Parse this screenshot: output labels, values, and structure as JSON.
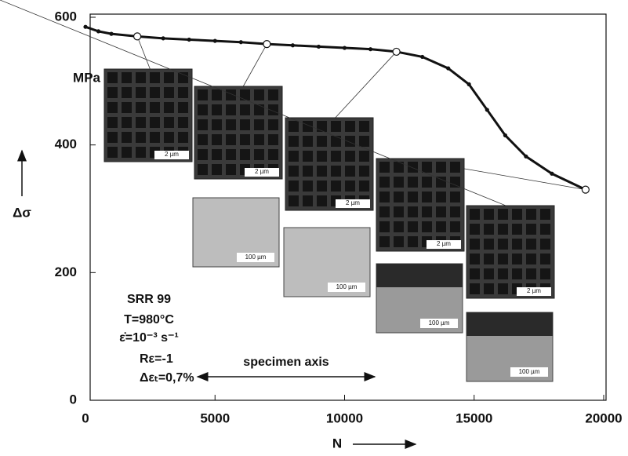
{
  "chart_data": {
    "type": "line",
    "x": [
      0,
      500,
      1000,
      2000,
      3000,
      4000,
      5000,
      6000,
      7000,
      8000,
      9000,
      10000,
      11000,
      12000,
      13000,
      14000,
      14800,
      15500,
      16200,
      17000,
      18000,
      19300
    ],
    "values": [
      585,
      578,
      574,
      570,
      567,
      565,
      563,
      561,
      558,
      556,
      554,
      552,
      550,
      546,
      538,
      520,
      495,
      455,
      415,
      382,
      355,
      330
    ],
    "color": "#111111",
    "xlim": [
      0,
      20000
    ],
    "xticks": [
      0,
      5000,
      10000,
      15000,
      20000
    ],
    "ylim": [
      0,
      600
    ],
    "yticks": [
      0,
      200,
      400,
      600
    ],
    "x_label": "N",
    "y_label": "Δσ",
    "y_unit": "MPa",
    "annotations": [
      "SRR 99",
      "T=980°C",
      "ε̇=10⁻³ s⁻¹",
      "Rε=-1",
      "Δεₜ=0,7%",
      "specimen axis"
    ],
    "inset_labels_top": [
      "2 µm",
      "2 µm",
      "2 µm",
      "2 µm",
      "2 µm"
    ],
    "inset_labels_bottom": [
      "100 µm",
      "100 µm",
      "100 µm",
      "100 µm"
    ]
  }
}
